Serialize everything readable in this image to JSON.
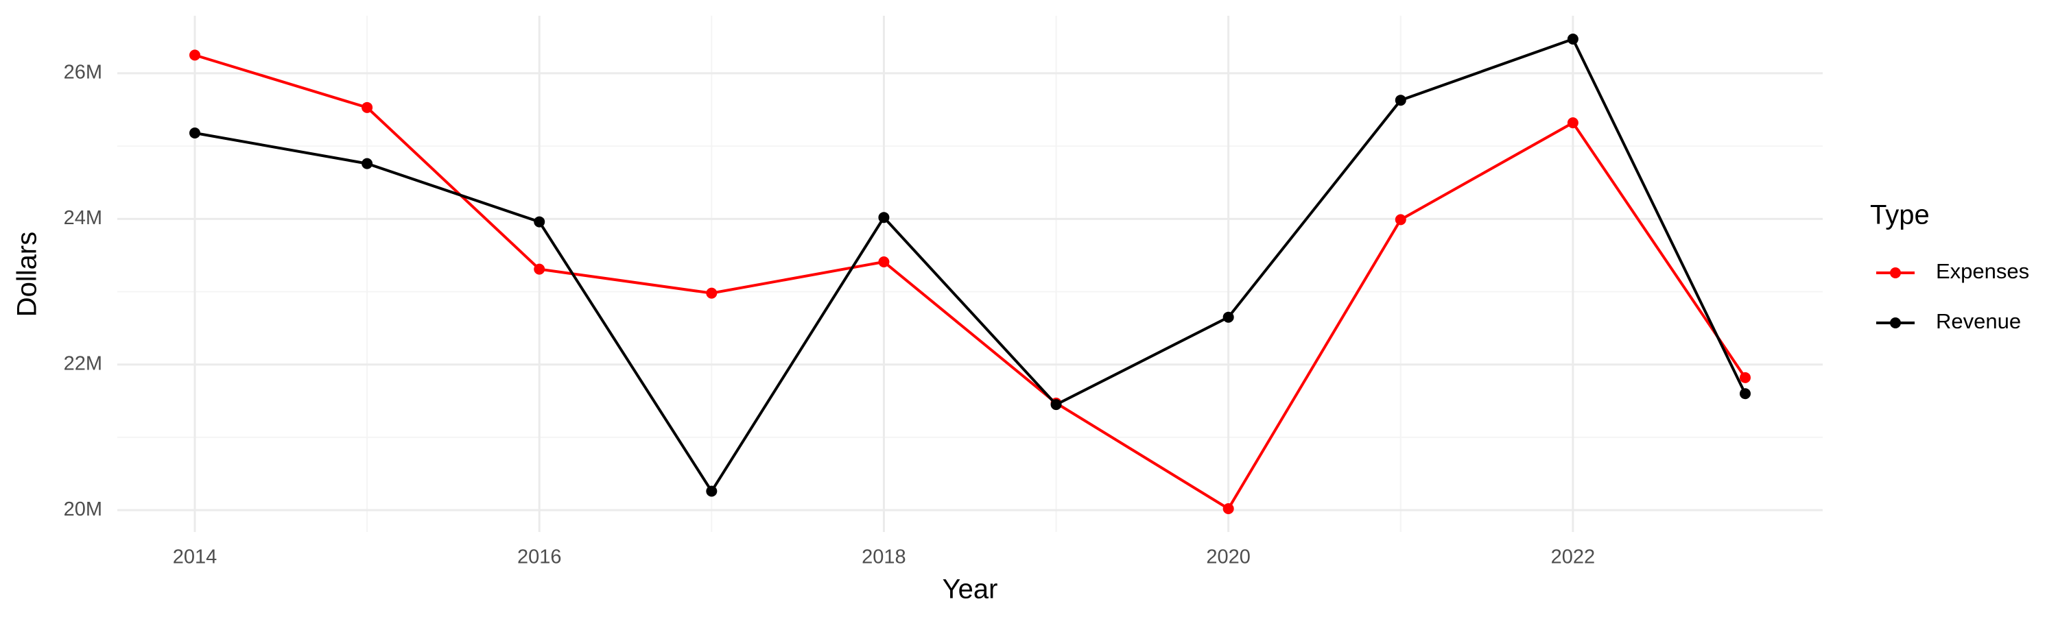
{
  "chart_data": {
    "type": "line",
    "x_label": "Year",
    "y_label": "Dollars",
    "legend_title": "Type",
    "x": [
      2014,
      2015,
      2016,
      2017,
      2018,
      2019,
      2020,
      2021,
      2022,
      2023
    ],
    "series": [
      {
        "name": "Expenses",
        "color": "#ff0000",
        "values": [
          26250000,
          25530000,
          23310000,
          22980000,
          23410000,
          21470000,
          20020000,
          23990000,
          25320000,
          21820000
        ]
      },
      {
        "name": "Revenue",
        "color": "#000000",
        "values": [
          25180000,
          24760000,
          23960000,
          20260000,
          24020000,
          21450000,
          22650000,
          25630000,
          26470000,
          21600000
        ]
      }
    ],
    "xlim": [
      2013.55,
      2023.45
    ],
    "xticks": [
      2014,
      2016,
      2018,
      2020,
      2022
    ],
    "ylim": [
      19700000,
      26790000
    ],
    "yticks": [
      {
        "value": 20000000,
        "label": "20M"
      },
      {
        "value": 22000000,
        "label": "22M"
      },
      {
        "value": 24000000,
        "label": "24M"
      },
      {
        "value": 26000000,
        "label": "26M"
      }
    ],
    "grid": true,
    "legend_position": "right"
  }
}
